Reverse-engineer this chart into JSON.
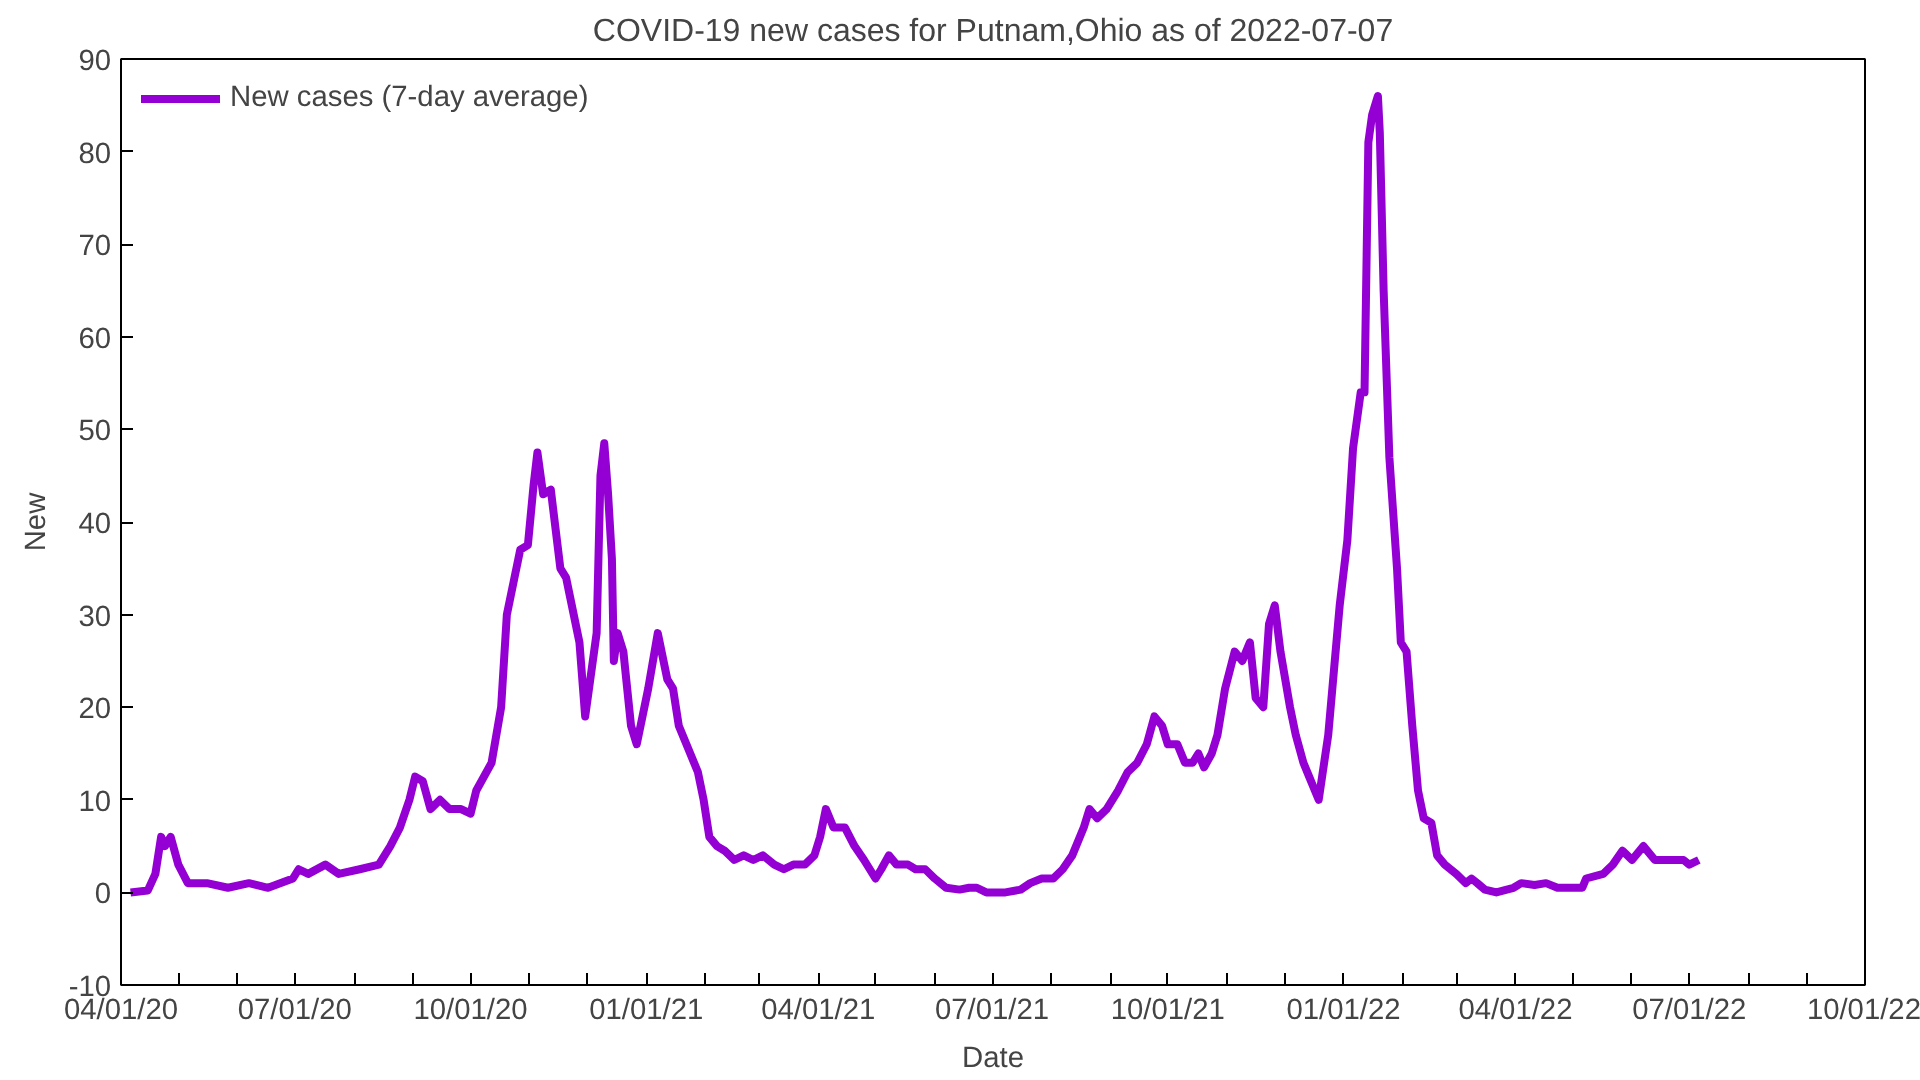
{
  "chart_data": {
    "type": "line",
    "title": "COVID-19 new cases for Putnam,Ohio as of 2022-07-07",
    "xlabel": "Date",
    "ylabel": "New",
    "x": [
      "2020-04-06",
      "2020-04-15",
      "2020-04-19",
      "2020-04-22",
      "2020-04-24",
      "2020-04-27",
      "2020-05-01",
      "2020-05-06",
      "2020-05-16",
      "2020-05-27",
      "2020-06-07",
      "2020-06-17",
      "2020-06-30",
      "2020-07-03",
      "2020-07-08",
      "2020-07-17",
      "2020-07-24",
      "2020-08-04",
      "2020-08-14",
      "2020-08-20",
      "2020-08-25",
      "2020-08-30",
      "2020-09-02",
      "2020-09-06",
      "2020-09-10",
      "2020-09-15",
      "2020-09-20",
      "2020-09-26",
      "2020-10-01",
      "2020-10-04",
      "2020-10-12",
      "2020-10-17",
      "2020-10-20",
      "2020-10-24",
      "2020-10-27",
      "2020-10-31",
      "2020-11-03",
      "2020-11-05",
      "2020-11-08",
      "2020-11-12",
      "2020-11-17",
      "2020-11-20",
      "2020-11-22",
      "2020-11-27",
      "2020-11-30",
      "2020-12-02",
      "2020-12-06",
      "2020-12-08",
      "2020-12-10",
      "2020-12-12",
      "2020-12-14",
      "2020-12-15",
      "2020-12-17",
      "2020-12-20",
      "2020-12-24",
      "2020-12-27",
      "2020-12-30",
      "2021-01-02",
      "2021-01-07",
      "2021-01-12",
      "2021-01-15",
      "2021-01-18",
      "2021-01-22",
      "2021-01-28",
      "2021-01-31",
      "2021-02-03",
      "2021-02-07",
      "2021-02-11",
      "2021-02-16",
      "2021-02-21",
      "2021-02-26",
      "2021-03-03",
      "2021-03-09",
      "2021-03-14",
      "2021-03-19",
      "2021-03-25",
      "2021-03-30",
      "2021-04-02",
      "2021-04-05",
      "2021-04-09",
      "2021-04-15",
      "2021-04-20",
      "2021-04-25",
      "2021-05-01",
      "2021-05-04",
      "2021-05-08",
      "2021-05-12",
      "2021-05-18",
      "2021-05-22",
      "2021-05-27",
      "2021-06-01",
      "2021-06-07",
      "2021-06-14",
      "2021-06-19",
      "2021-06-23",
      "2021-06-28",
      "2021-07-08",
      "2021-07-16",
      "2021-07-21",
      "2021-07-27",
      "2021-08-02",
      "2021-08-07",
      "2021-08-12",
      "2021-08-18",
      "2021-08-21",
      "2021-08-25",
      "2021-08-30",
      "2021-09-05",
      "2021-09-10",
      "2021-09-15",
      "2021-09-20",
      "2021-09-24",
      "2021-09-28",
      "2021-10-01",
      "2021-10-06",
      "2021-10-10",
      "2021-10-14",
      "2021-10-17",
      "2021-10-20",
      "2021-10-24",
      "2021-10-27",
      "2021-10-31",
      "2021-11-05",
      "2021-11-09",
      "2021-11-13",
      "2021-11-16",
      "2021-11-20",
      "2021-11-23",
      "2021-11-26",
      "2021-11-29",
      "2021-12-04",
      "2021-12-07",
      "2021-12-11",
      "2021-12-14",
      "2021-12-17",
      "2021-12-19",
      "2021-12-24",
      "2021-12-27",
      "2021-12-30",
      "2022-01-03",
      "2022-01-06",
      "2022-01-10",
      "2022-01-12",
      "2022-01-14",
      "2022-01-16",
      "2022-01-19",
      "2022-01-20",
      "2022-01-22",
      "2022-01-25",
      "2022-01-29",
      "2022-01-31",
      "2022-02-03",
      "2022-02-06",
      "2022-02-09",
      "2022-02-12",
      "2022-02-16",
      "2022-02-19",
      "2022-02-23",
      "2022-03-01",
      "2022-03-06",
      "2022-03-09",
      "2022-03-12",
      "2022-03-16",
      "2022-03-22",
      "2022-03-31",
      "2022-04-04",
      "2022-04-11",
      "2022-04-17",
      "2022-04-23",
      "2022-05-06",
      "2022-05-08",
      "2022-05-17",
      "2022-05-22",
      "2022-05-27",
      "2022-06-01",
      "2022-06-07",
      "2022-06-13",
      "2022-06-28",
      "2022-07-01",
      "2022-07-06"
    ],
    "series": [
      {
        "name": "New cases (7-day average)",
        "color": "#9400d3",
        "values": [
          0,
          0.2,
          2,
          6,
          5,
          6,
          3,
          1,
          1,
          0.5,
          1,
          0.5,
          1.5,
          2.5,
          2,
          3,
          2,
          2.5,
          3,
          5,
          7,
          10,
          12.5,
          12,
          9,
          10,
          9,
          9,
          8.5,
          11,
          14,
          20,
          30,
          34,
          37,
          37.5,
          44,
          47.5,
          43,
          43.5,
          35,
          34,
          32,
          27,
          19,
          22,
          28,
          45,
          48.5,
          43,
          36,
          25,
          28,
          26,
          18,
          16,
          19,
          22,
          28,
          23,
          22,
          18,
          16,
          13,
          10,
          6,
          5,
          4.5,
          3.5,
          4,
          3.5,
          4,
          3,
          2.5,
          3,
          3,
          4,
          6,
          9,
          7,
          7,
          5,
          3.5,
          1.5,
          2.5,
          4,
          3,
          3,
          2.5,
          2.5,
          1.5,
          0.5,
          0.3,
          0.5,
          0.5,
          0,
          0,
          0.3,
          1,
          1.5,
          1.5,
          2.5,
          4,
          7,
          9,
          8,
          9,
          11,
          13,
          14,
          16,
          19,
          18,
          16,
          16,
          14,
          14,
          15,
          13.5,
          15,
          17,
          22,
          26,
          25,
          27,
          21,
          20,
          29,
          31,
          26,
          20,
          17,
          14,
          12.5,
          11,
          10,
          17,
          24,
          31,
          38,
          48,
          54,
          54,
          81,
          84,
          86,
          82,
          65,
          47,
          35,
          27,
          26,
          18,
          11,
          8,
          7.5,
          4,
          3,
          2,
          1,
          1.5,
          1,
          0.3,
          0,
          0.5,
          1,
          0.8,
          1,
          0.5,
          0.5,
          1.5,
          2,
          3,
          4.5,
          3.5,
          5,
          3.5,
          3.5,
          3,
          3.5
        ]
      }
    ],
    "xlim": [
      "2020-04-01",
      "2022-10-01"
    ],
    "xticks": [
      {
        "value": "2020-04-01",
        "label": "04/01/20"
      },
      {
        "value": "2020-05-01",
        "label": null
      },
      {
        "value": "2020-06-01",
        "label": null
      },
      {
        "value": "2020-07-01",
        "label": "07/01/20"
      },
      {
        "value": "2020-08-01",
        "label": null
      },
      {
        "value": "2020-09-01",
        "label": null
      },
      {
        "value": "2020-10-01",
        "label": "10/01/20"
      },
      {
        "value": "2020-11-01",
        "label": null
      },
      {
        "value": "2020-12-01",
        "label": null
      },
      {
        "value": "2021-01-01",
        "label": "01/01/21"
      },
      {
        "value": "2021-02-01",
        "label": null
      },
      {
        "value": "2021-03-01",
        "label": null
      },
      {
        "value": "2021-04-01",
        "label": "04/01/21"
      },
      {
        "value": "2021-05-01",
        "label": null
      },
      {
        "value": "2021-06-01",
        "label": null
      },
      {
        "value": "2021-07-01",
        "label": "07/01/21"
      },
      {
        "value": "2021-08-01",
        "label": null
      },
      {
        "value": "2021-09-01",
        "label": null
      },
      {
        "value": "2021-10-01",
        "label": "10/01/21"
      },
      {
        "value": "2021-11-01",
        "label": null
      },
      {
        "value": "2021-12-01",
        "label": null
      },
      {
        "value": "2022-01-01",
        "label": "01/01/22"
      },
      {
        "value": "2022-02-01",
        "label": null
      },
      {
        "value": "2022-03-01",
        "label": null
      },
      {
        "value": "2022-04-01",
        "label": "04/01/22"
      },
      {
        "value": "2022-05-01",
        "label": null
      },
      {
        "value": "2022-06-01",
        "label": null
      },
      {
        "value": "2022-07-01",
        "label": "07/01/22"
      },
      {
        "value": "2022-08-01",
        "label": null
      },
      {
        "value": "2022-09-01",
        "label": null
      },
      {
        "value": "2022-10-01",
        "label": "10/01/22"
      }
    ],
    "ylim": [
      -10,
      90
    ],
    "yticks": [
      -10,
      0,
      10,
      20,
      30,
      40,
      50,
      60,
      70,
      80,
      90
    ],
    "grid": false,
    "legend": "top left",
    "line_style": "solid"
  }
}
